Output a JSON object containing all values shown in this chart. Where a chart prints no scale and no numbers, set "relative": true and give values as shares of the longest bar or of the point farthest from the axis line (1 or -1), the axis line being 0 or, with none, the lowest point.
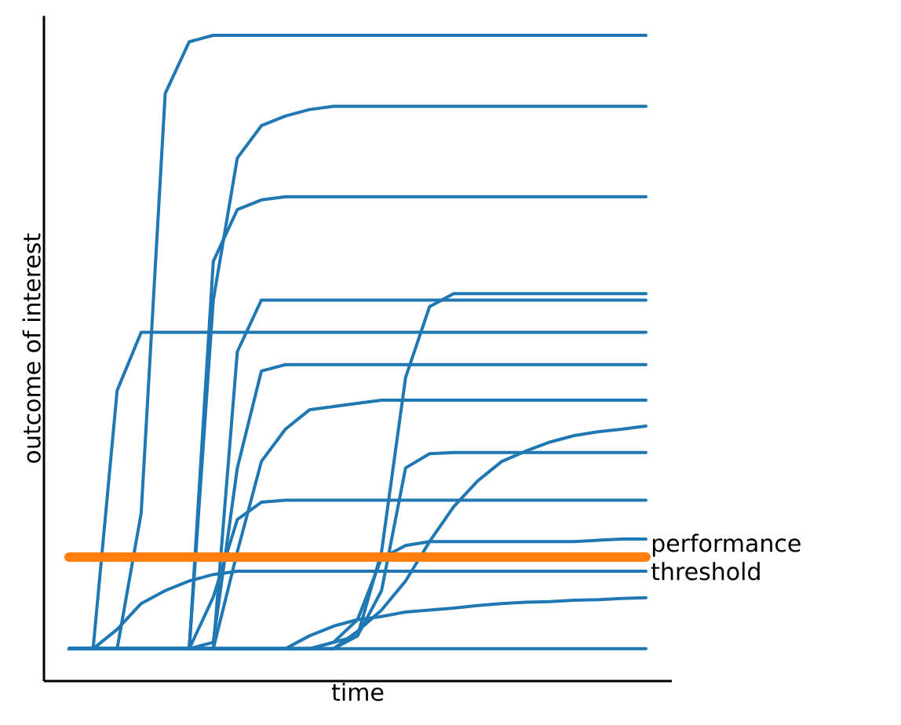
{
  "chart_data": {
    "type": "line",
    "relative": true,
    "xlabel": "time",
    "ylabel": "outcome of interest",
    "categories": [
      null,
      null,
      null,
      null,
      null,
      null,
      null,
      null,
      null,
      null,
      null,
      null,
      null,
      null,
      null,
      null,
      null,
      null,
      null,
      null,
      null,
      null,
      null,
      null,
      null
    ],
    "series": [
      {
        "color": "#1f77b4",
        "values": [
          0.05,
          0.05,
          0.05,
          0.26,
          0.91,
          0.99,
          1.0,
          1.0,
          1.0,
          1.0,
          1.0,
          1.0,
          1.0,
          1.0,
          1.0,
          1.0,
          1.0,
          1.0,
          1.0,
          1.0,
          1.0,
          1.0,
          1.0,
          1.0,
          1.0
        ]
      },
      {
        "color": "#1f77b4",
        "values": [
          0.05,
          0.05,
          0.05,
          0.05,
          0.05,
          0.05,
          0.59,
          0.81,
          0.86,
          0.875,
          0.885,
          0.89,
          0.89,
          0.89,
          0.89,
          0.89,
          0.89,
          0.89,
          0.89,
          0.89,
          0.89,
          0.89,
          0.89,
          0.89,
          0.89
        ]
      },
      {
        "color": "#1f77b4",
        "values": [
          0.05,
          0.05,
          0.05,
          0.05,
          0.05,
          0.05,
          0.65,
          0.73,
          0.745,
          0.75,
          0.75,
          0.75,
          0.75,
          0.75,
          0.75,
          0.75,
          0.75,
          0.75,
          0.75,
          0.75,
          0.75,
          0.75,
          0.75,
          0.75,
          0.75
        ]
      },
      {
        "color": "#1f77b4",
        "values": [
          0.05,
          0.05,
          0.05,
          0.05,
          0.05,
          0.05,
          0.05,
          0.51,
          0.59,
          0.59,
          0.59,
          0.59,
          0.59,
          0.59,
          0.59,
          0.59,
          0.59,
          0.59,
          0.59,
          0.59,
          0.59,
          0.59,
          0.59,
          0.59,
          0.59
        ]
      },
      {
        "color": "#1f77b4",
        "values": [
          0.05,
          0.05,
          0.05,
          0.05,
          0.05,
          0.05,
          0.05,
          0.05,
          0.05,
          0.05,
          0.05,
          0.05,
          0.07,
          0.2,
          0.47,
          0.58,
          0.6,
          0.6,
          0.6,
          0.6,
          0.6,
          0.6,
          0.6,
          0.6,
          0.6
        ]
      },
      {
        "color": "#1f77b4",
        "values": [
          0.05,
          0.05,
          0.45,
          0.54,
          0.54,
          0.54,
          0.54,
          0.54,
          0.54,
          0.54,
          0.54,
          0.54,
          0.54,
          0.54,
          0.54,
          0.54,
          0.54,
          0.54,
          0.54,
          0.54,
          0.54,
          0.54,
          0.54,
          0.54,
          0.54
        ]
      },
      {
        "color": "#1f77b4",
        "values": [
          0.05,
          0.05,
          0.05,
          0.05,
          0.05,
          0.05,
          0.06,
          0.33,
          0.48,
          0.49,
          0.49,
          0.49,
          0.49,
          0.49,
          0.49,
          0.49,
          0.49,
          0.49,
          0.49,
          0.49,
          0.49,
          0.49,
          0.49,
          0.49,
          0.49
        ]
      },
      {
        "color": "#1f77b4",
        "values": [
          0.05,
          0.05,
          0.05,
          0.05,
          0.05,
          0.05,
          0.05,
          0.2,
          0.34,
          0.39,
          0.42,
          0.425,
          0.43,
          0.435,
          0.435,
          0.435,
          0.435,
          0.435,
          0.435,
          0.435,
          0.435,
          0.435,
          0.435,
          0.435,
          0.435
        ]
      },
      {
        "color": "#1f77b4",
        "values": [
          0.05,
          0.05,
          0.05,
          0.05,
          0.05,
          0.05,
          0.05,
          0.05,
          0.05,
          0.05,
          0.05,
          0.05,
          0.077,
          0.11,
          0.155,
          0.216,
          0.27,
          0.31,
          0.34,
          0.356,
          0.37,
          0.38,
          0.386,
          0.39,
          0.395
        ]
      },
      {
        "color": "#1f77b4",
        "values": [
          0.05,
          0.05,
          0.05,
          0.05,
          0.05,
          0.05,
          0.05,
          0.05,
          0.05,
          0.05,
          0.05,
          0.06,
          0.07,
          0.14,
          0.33,
          0.352,
          0.354,
          0.354,
          0.354,
          0.354,
          0.354,
          0.354,
          0.354,
          0.354,
          0.354
        ]
      },
      {
        "color": "#1f77b4",
        "values": [
          0.05,
          0.05,
          0.05,
          0.05,
          0.05,
          0.05,
          0.13,
          0.25,
          0.277,
          0.28,
          0.28,
          0.28,
          0.28,
          0.28,
          0.28,
          0.28,
          0.28,
          0.28,
          0.28,
          0.28,
          0.28,
          0.28,
          0.28,
          0.28,
          0.28
        ]
      },
      {
        "color": "#1f77b4",
        "values": [
          0.05,
          0.05,
          0.05,
          0.05,
          0.05,
          0.05,
          0.05,
          0.05,
          0.05,
          0.05,
          0.05,
          0.06,
          0.095,
          0.19,
          0.21,
          0.216,
          0.216,
          0.216,
          0.216,
          0.216,
          0.216,
          0.216,
          0.218,
          0.22,
          0.22
        ]
      },
      {
        "color": "#1f77b4",
        "values": [
          0.05,
          0.05,
          0.08,
          0.12,
          0.14,
          0.155,
          0.165,
          0.17,
          0.17,
          0.17,
          0.17,
          0.17,
          0.17,
          0.17,
          0.17,
          0.17,
          0.17,
          0.17,
          0.17,
          0.17,
          0.17,
          0.17,
          0.17,
          0.17,
          0.17
        ]
      },
      {
        "color": "#1f77b4",
        "values": [
          0.05,
          0.05,
          0.05,
          0.05,
          0.05,
          0.05,
          0.05,
          0.05,
          0.05,
          0.05,
          0.07,
          0.085,
          0.095,
          0.1,
          0.107,
          0.11,
          0.113,
          0.117,
          0.12,
          0.122,
          0.123,
          0.125,
          0.126,
          0.128,
          0.129
        ]
      },
      {
        "color": "#1f77b4",
        "values": [
          0.05,
          0.05,
          0.05,
          0.05,
          0.05,
          0.05,
          0.05,
          0.05,
          0.05,
          0.05,
          0.05,
          0.05,
          0.05,
          0.05,
          0.05,
          0.05,
          0.05,
          0.05,
          0.05,
          0.05,
          0.05,
          0.05,
          0.05,
          0.05,
          0.05
        ]
      }
    ],
    "ref_lines": [
      {
        "axis": "y",
        "value": 0.192,
        "label": "performance threshold",
        "color": "#ff7f0e"
      }
    ]
  }
}
